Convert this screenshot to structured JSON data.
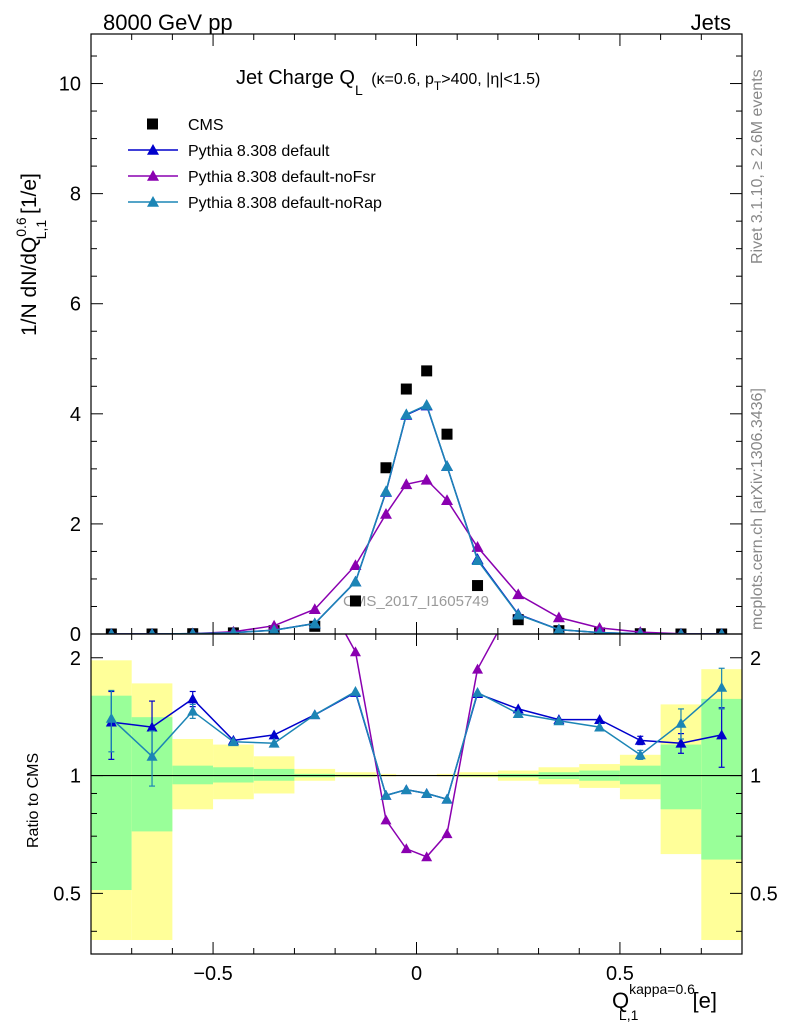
{
  "header": {
    "left": "8000 GeV pp",
    "right": "Jets"
  },
  "side_labels": {
    "rivet": "Rivet 3.1.10, ≥ 2.6M events",
    "mcplots": "mcplots.cern.ch [arXiv:1306.3436]"
  },
  "watermark": "CMS_2017_I1605749",
  "colors": {
    "cms": "#000000",
    "default": "#0000cc",
    "noFsr": "#8a00b0",
    "noRap": "#1c85b5",
    "band_outer": "#ffff99",
    "band_inner": "#99ff99"
  },
  "chart_data": [
    {
      "type": "scatter",
      "panel": "main",
      "title_main": "Jet Charge Q",
      "title_sub": "L",
      "title_rest": " (κ=0.6, p",
      "title_sub2": "T",
      "title_end": ">400, |η|<1.5)",
      "ylabel_main": "1/N dN/dQ",
      "ylabel_sup": "0.6",
      "ylabel_sub": "L,1",
      "ylabel_unit": " [1/e]",
      "xlim": [
        -0.8,
        0.8
      ],
      "ylim": [
        0,
        10.9
      ],
      "yticks": [
        0,
        2,
        4,
        6,
        8,
        10
      ],
      "legend_position": "top-left",
      "x": [
        -0.75,
        -0.65,
        -0.55,
        -0.45,
        -0.35,
        -0.25,
        -0.15,
        -0.075,
        -0.025,
        0.025,
        0.075,
        0.15,
        0.25,
        0.35,
        0.45,
        0.55,
        0.65,
        0.75
      ],
      "series": [
        {
          "name": "CMS",
          "key": "cms",
          "marker": "square",
          "values": [
            0.0,
            0.0,
            0.005,
            0.02,
            0.06,
            0.14,
            0.6,
            3.02,
            4.45,
            4.78,
            3.63,
            0.88,
            0.26,
            0.06,
            0.02,
            0.005,
            0.0,
            0.0
          ]
        },
        {
          "name": "Pythia 8.308 default",
          "key": "default",
          "marker": "triangle",
          "values": [
            0.0,
            0.0,
            0.008,
            0.025,
            0.07,
            0.19,
            0.95,
            2.58,
            3.98,
            4.15,
            3.05,
            1.36,
            0.36,
            0.08,
            0.025,
            0.006,
            0.0,
            0.0
          ]
        },
        {
          "name": "Pythia 8.308 default-noFsr",
          "key": "noFsr",
          "marker": "triangle",
          "values": [
            0.0,
            0.0,
            0.008,
            0.04,
            0.15,
            0.45,
            1.25,
            2.18,
            2.72,
            2.8,
            2.43,
            1.58,
            0.72,
            0.3,
            0.11,
            0.035,
            0.005,
            0.0
          ]
        },
        {
          "name": "Pythia 8.308 default-noRap",
          "key": "noRap",
          "marker": "triangle",
          "values": [
            0.0,
            0.0,
            0.007,
            0.024,
            0.068,
            0.19,
            0.95,
            2.59,
            3.99,
            4.16,
            3.05,
            1.34,
            0.35,
            0.08,
            0.025,
            0.006,
            0.0,
            0.0
          ]
        }
      ]
    },
    {
      "type": "line",
      "panel": "ratio",
      "ylabel": "Ratio to CMS",
      "xlabel_main": "Q",
      "xlabel_sup": "kappa=0.6",
      "xlabel_sub": "L,1",
      "xlabel_unit": " [e]",
      "xlim": [
        -0.8,
        0.8
      ],
      "ylim": [
        0.35,
        2.3
      ],
      "log_y": true,
      "yticks": [
        0.5,
        1,
        2
      ],
      "xticks": [
        -0.5,
        0,
        0.5
      ],
      "reference_line": 1,
      "x": [
        -0.75,
        -0.65,
        -0.55,
        -0.45,
        -0.35,
        -0.25,
        -0.15,
        -0.075,
        -0.025,
        0.025,
        0.075,
        0.15,
        0.25,
        0.35,
        0.45,
        0.55,
        0.65,
        0.75
      ],
      "bin_edges": [
        -0.8,
        -0.7,
        -0.6,
        -0.5,
        -0.4,
        -0.3,
        -0.2,
        -0.1,
        -0.05,
        0.0,
        0.05,
        0.1,
        0.2,
        0.3,
        0.4,
        0.5,
        0.6,
        0.7,
        0.8
      ],
      "band_outer": {
        "lo": [
          0.38,
          0.38,
          0.82,
          0.87,
          0.9,
          0.97,
          0.99,
          0.995,
          0.997,
          0.997,
          0.995,
          0.99,
          0.97,
          0.95,
          0.93,
          0.87,
          0.63,
          0.38
        ],
        "hi": [
          1.97,
          1.72,
          1.24,
          1.2,
          1.12,
          1.04,
          1.02,
          1.01,
          1.005,
          1.005,
          1.01,
          1.02,
          1.03,
          1.05,
          1.07,
          1.13,
          1.52,
          1.87
        ]
      },
      "band_inner": {
        "lo": [
          0.51,
          0.72,
          0.95,
          0.96,
          0.97,
          0.99,
          0.995,
          0.998,
          0.999,
          0.999,
          0.998,
          0.995,
          0.99,
          0.98,
          0.97,
          0.95,
          0.82,
          0.61
        ],
        "hi": [
          1.6,
          1.41,
          1.06,
          1.05,
          1.04,
          1.01,
          1.005,
          1.003,
          1.002,
          1.002,
          1.003,
          1.005,
          1.01,
          1.02,
          1.03,
          1.06,
          1.2,
          1.57
        ]
      },
      "series": [
        {
          "name": "Pythia 8.308 default",
          "key": "default",
          "values": [
            1.37,
            1.33,
            1.57,
            1.23,
            1.27,
            1.43,
            1.63,
            0.89,
            0.92,
            0.9,
            0.87,
            1.62,
            1.48,
            1.39,
            1.39,
            1.23,
            1.21,
            1.27
          ],
          "err": [
            0.27,
            0.22,
            0.07,
            0.02,
            0.01,
            0.01,
            0.01,
            0.004,
            0.003,
            0.003,
            0.004,
            0.01,
            0.01,
            0.01,
            0.02,
            0.03,
            0.07,
            0.22
          ]
        },
        {
          "name": "Pythia 8.308 default-noFsr",
          "key": "noFsr",
          "values": [
            null,
            null,
            null,
            null,
            null,
            3.2,
            2.07,
            0.77,
            0.65,
            0.62,
            0.71,
            1.87,
            2.9,
            null,
            null,
            null,
            null,
            null
          ],
          "err": []
        },
        {
          "name": "Pythia 8.308 default-noRap",
          "key": "noRap",
          "values": [
            1.4,
            1.12,
            1.46,
            1.22,
            1.21,
            1.43,
            1.64,
            0.89,
            0.92,
            0.9,
            0.87,
            1.63,
            1.44,
            1.38,
            1.33,
            1.13,
            1.36,
            1.68
          ],
          "err": [
            0.25,
            0.18,
            0.06,
            0.02,
            0.01,
            0.01,
            0.01,
            0.004,
            0.003,
            0.003,
            0.004,
            0.01,
            0.01,
            0.01,
            0.02,
            0.03,
            0.12,
            0.2
          ]
        }
      ]
    }
  ]
}
